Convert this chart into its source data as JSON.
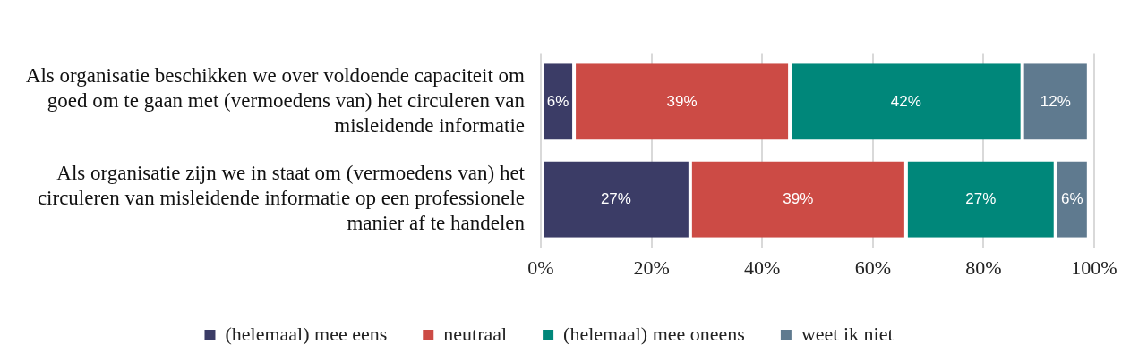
{
  "chart_data": {
    "type": "bar",
    "orientation": "horizontal",
    "stacked": true,
    "categories": [
      "Als organisatie beschikken we over voldoende capaciteit om goed om te gaan met (vermoedens van) het circuleren van misleidende informatie",
      "Als organisatie zijn we in staat om (vermoedens van) het circuleren van misleidende informatie op een professionele manier af te handelen"
    ],
    "series": [
      {
        "name": "(helemaal) mee eens",
        "color": "#3b3c66",
        "values": [
          6,
          27
        ],
        "value_labels": [
          "6%",
          "27%"
        ]
      },
      {
        "name": "neutraal",
        "color": "#cc4b45",
        "values": [
          39,
          39
        ],
        "value_labels": [
          "39%",
          "39%"
        ]
      },
      {
        "name": "(helemaal) mee oneens",
        "color": "#00877a",
        "values": [
          42,
          27
        ],
        "value_labels": [
          "42%",
          "27%"
        ]
      },
      {
        "name": "weet ik niet",
        "color": "#5f7a8f",
        "values": [
          12,
          6
        ],
        "value_labels": [
          "12%",
          "6%"
        ]
      }
    ],
    "xlim": [
      0,
      100
    ],
    "xticks": [
      {
        "value": 0,
        "label": "0%"
      },
      {
        "value": 20,
        "label": "20%"
      },
      {
        "value": 40,
        "label": "40%"
      },
      {
        "value": 60,
        "label": "60%"
      },
      {
        "value": 80,
        "label": "80%"
      },
      {
        "value": 100,
        "label": "100%"
      }
    ],
    "grid": "x",
    "legend": "bottom"
  }
}
